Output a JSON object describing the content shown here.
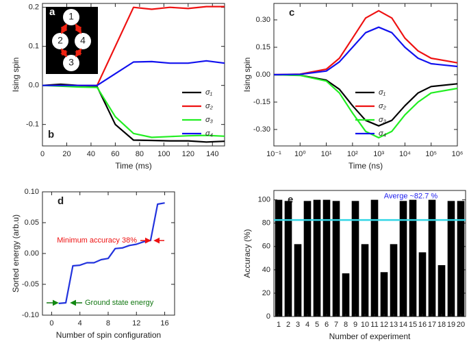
{
  "chart_data": [
    {
      "type": "line",
      "panel_label": "b",
      "xlabel": "Time (ms)",
      "ylabel": "Ising spin",
      "x": [
        0,
        15,
        30,
        45,
        60,
        75,
        90,
        105,
        120,
        135,
        150
      ],
      "series": [
        {
          "name": "σ₁",
          "color": "#000000",
          "values": [
            0,
            0.003,
            0,
            -0.003,
            -0.1,
            -0.14,
            -0.141,
            -0.142,
            -0.142,
            -0.145,
            -0.143
          ]
        },
        {
          "name": "σ₂",
          "color": "#ee1111",
          "values": [
            0,
            0,
            0,
            0,
            0.1,
            0.2,
            0.195,
            0.2,
            0.197,
            0.202,
            0.202
          ]
        },
        {
          "name": "σ₃",
          "color": "#22ee22",
          "values": [
            0,
            -0.002,
            -0.004,
            -0.005,
            -0.08,
            -0.123,
            -0.133,
            -0.131,
            -0.129,
            -0.128,
            -0.13
          ]
        },
        {
          "name": "σ₄",
          "color": "#1111ee",
          "values": [
            0,
            0,
            0,
            0,
            0.03,
            0.06,
            0.061,
            0.057,
            0.057,
            0.063,
            0.057
          ]
        }
      ],
      "xlim": [
        0,
        150
      ],
      "xticks": [
        0,
        20,
        40,
        60,
        80,
        100,
        120,
        140
      ],
      "ylim": [
        -0.155,
        0.21
      ],
      "yticks": [
        -0.1,
        {
          "value": 0,
          "label": "0.0"
        },
        0.1,
        0.2
      ],
      "legend": "lower right",
      "inset": {
        "label": "a",
        "nodes": [
          "1",
          "2",
          "3",
          "4"
        ]
      }
    },
    {
      "type": "line",
      "panel_label": "c",
      "xlabel": "Time (ns)",
      "ylabel": "Ising spin",
      "xlog": true,
      "x": [
        0.1,
        1,
        10,
        31.6,
        100,
        316,
        1000,
        3162,
        10000,
        31623,
        100000,
        1000000
      ],
      "series": [
        {
          "name": "σ₁",
          "color": "#000000",
          "values": [
            0,
            -0.003,
            -0.03,
            -0.08,
            -0.17,
            -0.25,
            -0.28,
            -0.25,
            -0.17,
            -0.1,
            -0.065,
            -0.05
          ]
        },
        {
          "name": "σ₂",
          "color": "#ee1111",
          "values": [
            0,
            0.003,
            0.03,
            0.09,
            0.2,
            0.31,
            0.35,
            0.31,
            0.2,
            0.13,
            0.09,
            0.065
          ]
        },
        {
          "name": "σ₃",
          "color": "#22ee22",
          "values": [
            0,
            -0.004,
            -0.035,
            -0.1,
            -0.21,
            -0.31,
            -0.345,
            -0.31,
            -0.22,
            -0.15,
            -0.1,
            -0.075
          ]
        },
        {
          "name": "σ₄",
          "color": "#1111ee",
          "values": [
            0,
            0.002,
            0.02,
            0.07,
            0.15,
            0.23,
            0.26,
            0.23,
            0.15,
            0.09,
            0.06,
            0.045
          ]
        }
      ],
      "xlim": [
        0.1,
        1000000
      ],
      "xticks": [
        {
          "value": 0.1,
          "label": "10⁻¹"
        },
        {
          "value": 1,
          "label": "10⁰"
        },
        {
          "value": 10,
          "label": "10¹"
        },
        {
          "value": 100,
          "label": "10²"
        },
        {
          "value": 1000,
          "label": "10³"
        },
        {
          "value": 10000,
          "label": "10⁴"
        },
        {
          "value": 100000,
          "label": "10⁵"
        },
        {
          "value": 1000000,
          "label": "10⁶"
        }
      ],
      "ylim": [
        -0.39,
        0.39
      ],
      "yticks": [
        {
          "value": -0.3,
          "label": "-0.30"
        },
        -0.15,
        {
          "value": 0,
          "label": "0.00"
        },
        0.15,
        {
          "value": 0.3,
          "label": "0.30"
        }
      ],
      "legend": "lower center"
    },
    {
      "type": "line",
      "panel_label": "d",
      "xlabel": "Number of spin configuration",
      "ylabel": "Sorted energy (arb.u)",
      "x": [
        1,
        2,
        3,
        4,
        5,
        6,
        7,
        8,
        9,
        10,
        11,
        12,
        13,
        14,
        15,
        16
      ],
      "series": [
        {
          "color": "#2233dd",
          "values": [
            -0.081,
            -0.08,
            -0.02,
            -0.019,
            -0.015,
            -0.015,
            -0.01,
            -0.008,
            0.008,
            0.009,
            0.013,
            0.015,
            0.019,
            0.021,
            0.08,
            0.082
          ]
        }
      ],
      "xlim": [
        -1.3,
        17.4
      ],
      "xticks": [
        0,
        4,
        8,
        12,
        16
      ],
      "ylim": [
        -0.1,
        0.1
      ],
      "yticks": [
        {
          "value": -0.1,
          "label": "-0.10"
        },
        -0.05,
        {
          "value": 0,
          "label": "0.00"
        },
        0.05,
        {
          "value": 0.1,
          "label": "0.10"
        }
      ],
      "annotations": [
        {
          "text": "Minimum accuracy 38%",
          "color": "#ee1111"
        },
        {
          "text": "Ground state energy",
          "color": "#117711"
        }
      ]
    },
    {
      "type": "bar",
      "panel_label": "e",
      "xlabel": "Number of experiment",
      "ylabel": "Accuracy (%)",
      "categories": [
        "1",
        "2",
        "3",
        "4",
        "5",
        "6",
        "7",
        "8",
        "9",
        "10",
        "11",
        "12",
        "13",
        "14",
        "15",
        "16",
        "17",
        "18",
        "19",
        "20"
      ],
      "values": [
        100,
        99,
        62,
        99,
        100,
        100,
        99,
        37,
        99,
        62,
        100,
        38,
        62,
        99,
        100,
        55,
        100,
        44,
        99,
        99
      ],
      "color": "#000000",
      "ylim": [
        0,
        108
      ],
      "yticks": [
        0,
        20,
        40,
        60,
        80,
        100
      ],
      "reference_line": {
        "value": 82.7,
        "label": "Averge ~82.7 %",
        "color": "#33d6e6",
        "label_color": "#2222ee"
      }
    }
  ]
}
